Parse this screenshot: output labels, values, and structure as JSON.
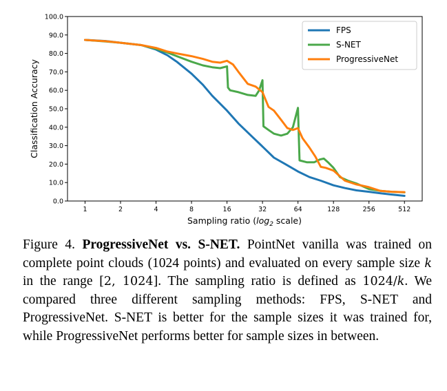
{
  "chart_data": {
    "type": "line",
    "title": "",
    "xlabel_text": "Sampling ratio (",
    "xlabel_math": "log",
    "xlabel_sub": "2",
    "xlabel_end": " scale)",
    "ylabel": "Classification Accuracy",
    "xscale": "log2",
    "xlim": [
      0.71,
      724
    ],
    "ylim": [
      0,
      100
    ],
    "xticks": [
      1,
      2,
      4,
      8,
      16,
      32,
      64,
      128,
      256,
      512
    ],
    "xtick_labels": [
      "1",
      "2",
      "4",
      "8",
      "16",
      "32",
      "64",
      "128",
      "256",
      "512"
    ],
    "yticks": [
      0,
      10,
      20,
      30,
      40,
      50,
      60,
      70,
      80,
      90,
      100
    ],
    "ytick_labels": [
      "0.0",
      "10.0",
      "20.0",
      "30.0",
      "40.0",
      "50.0",
      "60.0",
      "70.0",
      "80.0",
      "90.0",
      "100.0"
    ],
    "legend_position": "top-right",
    "series": [
      {
        "name": "FPS",
        "color": "#1f77b4",
        "points": [
          [
            1,
            87.3
          ],
          [
            1.5,
            86.7
          ],
          [
            2,
            85.8
          ],
          [
            3,
            84.5
          ],
          [
            4,
            82.1
          ],
          [
            5,
            79
          ],
          [
            6,
            75.5
          ],
          [
            8,
            69
          ],
          [
            10,
            63
          ],
          [
            12,
            57
          ],
          [
            16,
            49
          ],
          [
            20,
            42
          ],
          [
            26,
            35
          ],
          [
            32,
            29.5
          ],
          [
            40,
            23.5
          ],
          [
            50,
            20
          ],
          [
            64,
            16
          ],
          [
            80,
            13
          ],
          [
            100,
            11
          ],
          [
            128,
            8.5
          ],
          [
            160,
            7
          ],
          [
            200,
            5.8
          ],
          [
            256,
            5
          ],
          [
            320,
            4.2
          ],
          [
            400,
            3.5
          ],
          [
            512,
            2.8
          ]
        ]
      },
      {
        "name": "S-NET",
        "color": "#4aa84a",
        "points": [
          [
            1,
            87.3
          ],
          [
            1.5,
            86.5
          ],
          [
            2,
            85.8
          ],
          [
            3,
            84.5
          ],
          [
            4,
            82.5
          ],
          [
            5,
            80.5
          ],
          [
            6,
            78.5
          ],
          [
            8,
            75.5
          ],
          [
            10,
            73.5
          ],
          [
            12,
            72.5
          ],
          [
            14,
            72
          ],
          [
            16,
            73
          ],
          [
            16.3,
            61.5
          ],
          [
            17,
            60
          ],
          [
            20,
            59
          ],
          [
            24,
            57.5
          ],
          [
            28,
            57
          ],
          [
            30,
            60
          ],
          [
            32,
            65.5
          ],
          [
            32.6,
            40.5
          ],
          [
            36,
            38.5
          ],
          [
            40,
            36.5
          ],
          [
            46,
            35.5
          ],
          [
            52,
            36.5
          ],
          [
            58,
            40
          ],
          [
            64,
            50.5
          ],
          [
            66,
            22
          ],
          [
            76,
            21
          ],
          [
            88,
            21
          ],
          [
            98,
            22.5
          ],
          [
            106,
            23
          ],
          [
            115,
            21
          ],
          [
            128,
            18
          ],
          [
            145,
            13
          ],
          [
            170,
            11
          ],
          [
            200,
            9.5
          ],
          [
            256,
            6.5
          ],
          [
            320,
            5.5
          ],
          [
            400,
            5
          ],
          [
            512,
            4.7
          ]
        ]
      },
      {
        "name": "ProgressiveNet",
        "color": "#ff7f0e",
        "points": [
          [
            1,
            87.3
          ],
          [
            1.5,
            86.6
          ],
          [
            2,
            85.8
          ],
          [
            3,
            84.5
          ],
          [
            4,
            83
          ],
          [
            5,
            81
          ],
          [
            6,
            80
          ],
          [
            8,
            78.5
          ],
          [
            10,
            77
          ],
          [
            12,
            75.5
          ],
          [
            14,
            75
          ],
          [
            16,
            76
          ],
          [
            18,
            74
          ],
          [
            20,
            70
          ],
          [
            24,
            63.5
          ],
          [
            28,
            62
          ],
          [
            32,
            59
          ],
          [
            36,
            51
          ],
          [
            40,
            49
          ],
          [
            46,
            44
          ],
          [
            52,
            39.5
          ],
          [
            58,
            38.5
          ],
          [
            64,
            39.5
          ],
          [
            70,
            34
          ],
          [
            80,
            29
          ],
          [
            90,
            24
          ],
          [
            100,
            18.5
          ],
          [
            110,
            18
          ],
          [
            128,
            16.5
          ],
          [
            160,
            11
          ],
          [
            200,
            9
          ],
          [
            256,
            7.5
          ],
          [
            320,
            5.5
          ],
          [
            400,
            5
          ],
          [
            512,
            4.8
          ]
        ]
      }
    ]
  },
  "caption": {
    "figure_label": "Figure 4.",
    "title": "ProgressiveNet vs. S-NET.",
    "text_1": " PointNet vanilla was trained on complete point clouds (1024 points) and evaluated on every sample size ",
    "math_k": "k",
    "text_2": " in the range ",
    "math_range": "[2, 1024]",
    "text_3": ". The sampling ratio is defined as ",
    "math_ratio_a": "1024/",
    "math_ratio_b": "k",
    "text_4": ". We compared three different sampling methods: FPS, S-NET and ProgressiveNet. S-NET is better for the sample sizes it was trained for, while ProgressiveNet performs better for sample sizes in between."
  }
}
